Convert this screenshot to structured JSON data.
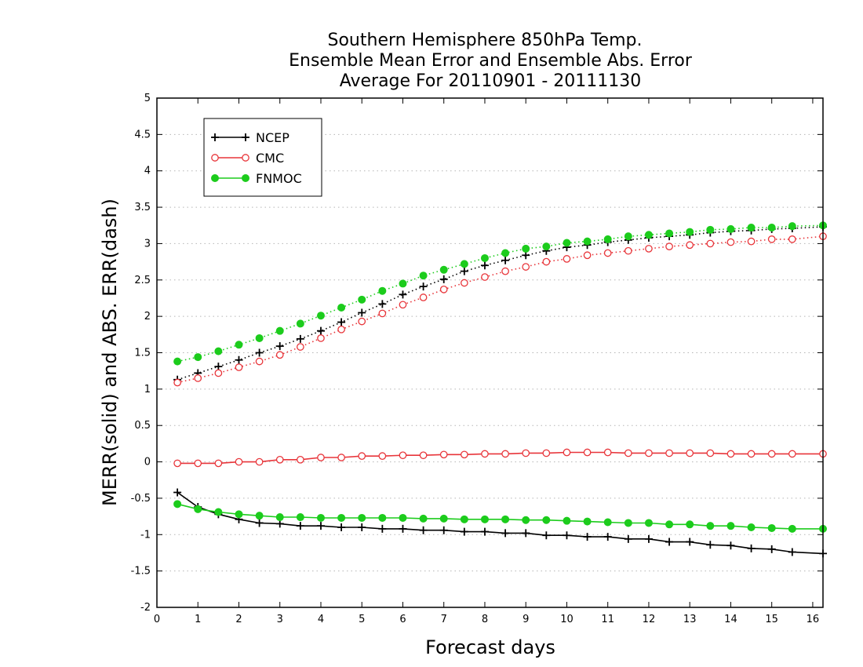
{
  "chart_data": {
    "type": "line",
    "title_lines": [
      "Southern Hemisphere 850hPa Temp.",
      "Ensemble Mean Error and Ensemble Abs. Error",
      "Average For 20110901 - 20111130"
    ],
    "xlabel": "Forecast days",
    "ylabel": "MERR(solid) and ABS. ERR(dash)",
    "xlim": [
      0,
      16.25
    ],
    "ylim": [
      -2,
      5
    ],
    "xticks": [
      "0",
      "1",
      "2",
      "3",
      "4",
      "5",
      "6",
      "7",
      "8",
      "9",
      "10",
      "11",
      "12",
      "13",
      "14",
      "15",
      "16"
    ],
    "yticks": [
      "-2",
      "-1.5",
      "-1",
      "-0.5",
      "0",
      "0.5",
      "1",
      "1.5",
      "2",
      "2.5",
      "3",
      "3.5",
      "4",
      "4.5",
      "5"
    ],
    "grid": "horizontal dotted",
    "legend_placement": "top-left",
    "x": [
      0.5,
      1,
      1.5,
      2,
      2.5,
      3,
      3.5,
      4,
      4.5,
      5,
      5.5,
      6,
      6.5,
      7,
      7.5,
      8,
      8.5,
      9,
      9.5,
      10,
      10.5,
      11,
      11.5,
      12,
      12.5,
      13,
      13.5,
      14,
      14.5,
      15,
      15.5,
      16.25
    ],
    "series": [
      {
        "name": "NCEP",
        "color": "#000000",
        "marker": "plus",
        "merr": [
          -0.42,
          -0.62,
          -0.72,
          -0.79,
          -0.84,
          -0.85,
          -0.88,
          -0.88,
          -0.9,
          -0.9,
          -0.92,
          -0.92,
          -0.94,
          -0.94,
          -0.96,
          -0.96,
          -0.98,
          -0.98,
          -1.01,
          -1.01,
          -1.03,
          -1.03,
          -1.06,
          -1.06,
          -1.1,
          -1.1,
          -1.14,
          -1.15,
          -1.19,
          -1.2,
          -1.24,
          -1.26
        ],
        "abs_err": [
          1.13,
          1.22,
          1.31,
          1.4,
          1.5,
          1.59,
          1.69,
          1.8,
          1.92,
          2.05,
          2.17,
          2.3,
          2.41,
          2.51,
          2.62,
          2.7,
          2.77,
          2.84,
          2.9,
          2.95,
          2.98,
          3.02,
          3.05,
          3.08,
          3.1,
          3.12,
          3.15,
          3.17,
          3.18,
          3.2,
          3.21,
          3.23
        ]
      },
      {
        "name": "CMC",
        "color": "#e8353a",
        "marker": "open-circle",
        "merr": [
          -0.02,
          -0.02,
          -0.02,
          0.0,
          0.0,
          0.03,
          0.03,
          0.06,
          0.06,
          0.08,
          0.08,
          0.09,
          0.09,
          0.1,
          0.1,
          0.11,
          0.11,
          0.12,
          0.12,
          0.13,
          0.13,
          0.13,
          0.12,
          0.12,
          0.12,
          0.12,
          0.12,
          0.11,
          0.11,
          0.11,
          0.11,
          0.11
        ],
        "abs_err": [
          1.09,
          1.15,
          1.22,
          1.3,
          1.38,
          1.47,
          1.58,
          1.7,
          1.82,
          1.93,
          2.04,
          2.16,
          2.26,
          2.37,
          2.46,
          2.54,
          2.62,
          2.68,
          2.75,
          2.79,
          2.84,
          2.87,
          2.9,
          2.93,
          2.96,
          2.98,
          3.0,
          3.02,
          3.03,
          3.06,
          3.06,
          3.1
        ]
      },
      {
        "name": "FNMOC",
        "color": "#1ccc1c",
        "marker": "filled-circle",
        "merr": [
          -0.58,
          -0.65,
          -0.69,
          -0.72,
          -0.74,
          -0.76,
          -0.76,
          -0.77,
          -0.77,
          -0.77,
          -0.77,
          -0.77,
          -0.78,
          -0.78,
          -0.79,
          -0.79,
          -0.79,
          -0.8,
          -0.8,
          -0.81,
          -0.82,
          -0.83,
          -0.84,
          -0.84,
          -0.86,
          -0.86,
          -0.88,
          -0.88,
          -0.9,
          -0.91,
          -0.92,
          -0.92
        ],
        "abs_err": [
          1.38,
          1.44,
          1.52,
          1.61,
          1.7,
          1.8,
          1.9,
          2.01,
          2.12,
          2.23,
          2.35,
          2.45,
          2.56,
          2.64,
          2.72,
          2.8,
          2.87,
          2.93,
          2.96,
          3.01,
          3.03,
          3.06,
          3.1,
          3.12,
          3.14,
          3.16,
          3.19,
          3.2,
          3.22,
          3.22,
          3.24,
          3.25
        ]
      }
    ]
  }
}
